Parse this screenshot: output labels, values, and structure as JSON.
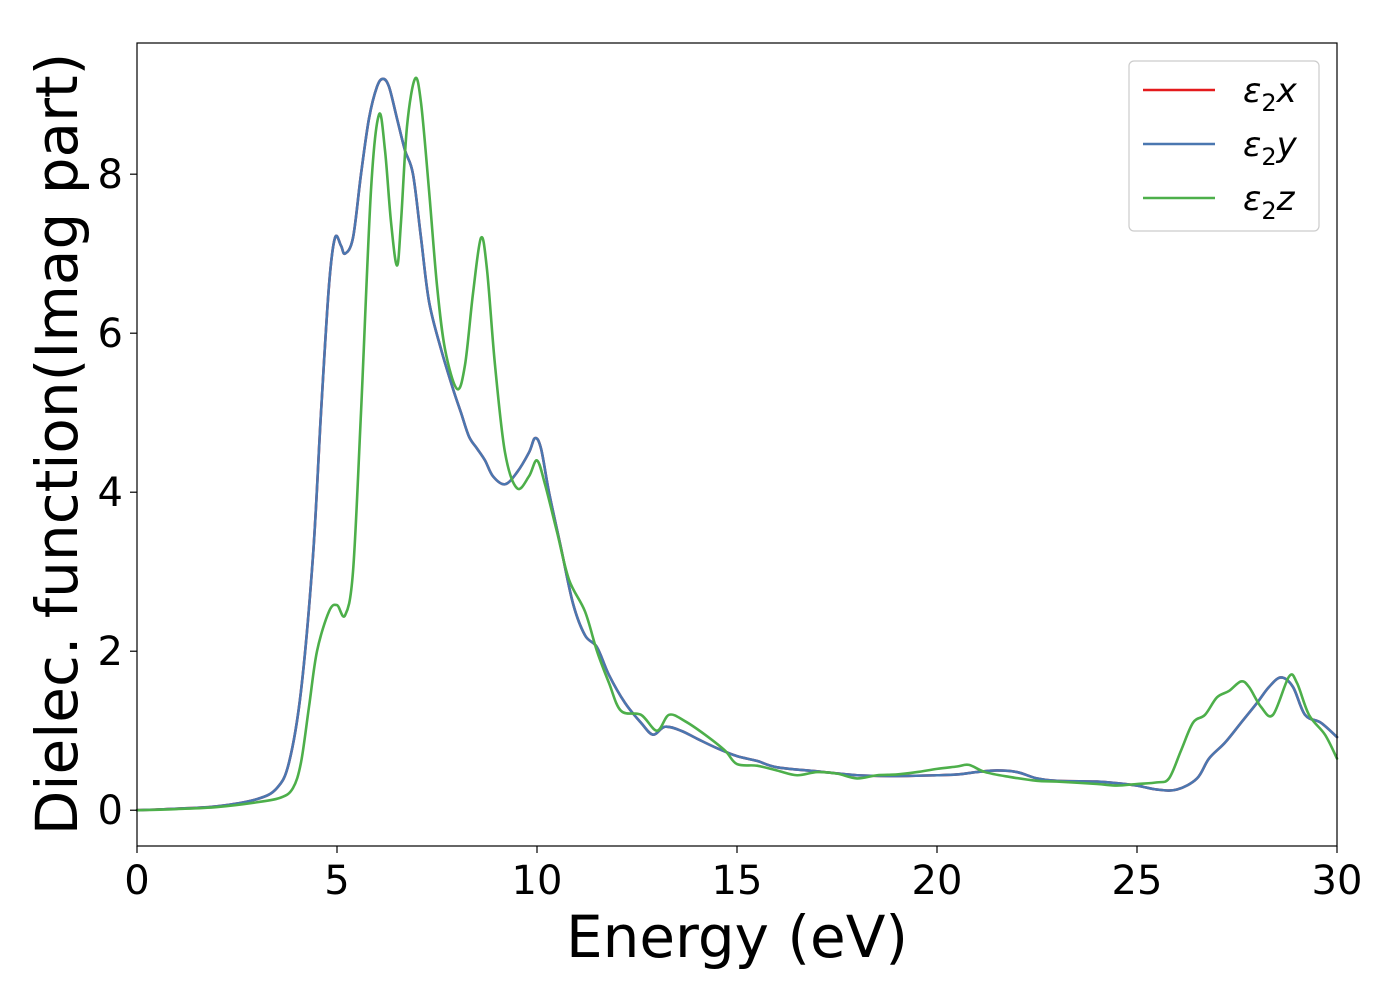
{
  "chart_data": {
    "type": "line",
    "title": "",
    "xlabel": "Energy (eV)",
    "ylabel": "Dielec. function(Imag part)",
    "xlim": [
      0,
      30
    ],
    "ylim": [
      -0.45,
      9.65
    ],
    "xticks": [
      "0",
      "5",
      "10",
      "15",
      "20",
      "25",
      "30"
    ],
    "yticks": [
      "0",
      "2",
      "4",
      "6",
      "8"
    ],
    "grid": false,
    "legend_position": "top-right",
    "series": [
      {
        "name": "ε₂x",
        "legend_main": "ε",
        "legend_sub": "2",
        "legend_var": "x",
        "color": "#e41a1c",
        "points": [
          [
            0,
            0
          ],
          [
            1,
            0.02
          ],
          [
            2,
            0.05
          ],
          [
            3,
            0.14
          ],
          [
            3.5,
            0.28
          ],
          [
            3.8,
            0.6
          ],
          [
            4.1,
            1.5
          ],
          [
            4.4,
            3.2
          ],
          [
            4.6,
            5.0
          ],
          [
            4.8,
            6.6
          ],
          [
            4.95,
            7.2
          ],
          [
            5.1,
            7.1
          ],
          [
            5.2,
            7.0
          ],
          [
            5.4,
            7.2
          ],
          [
            5.6,
            8.0
          ],
          [
            5.8,
            8.7
          ],
          [
            6.0,
            9.1
          ],
          [
            6.15,
            9.2
          ],
          [
            6.3,
            9.1
          ],
          [
            6.5,
            8.7
          ],
          [
            6.7,
            8.3
          ],
          [
            6.9,
            8.0
          ],
          [
            7.1,
            7.2
          ],
          [
            7.3,
            6.4
          ],
          [
            7.6,
            5.8
          ],
          [
            7.9,
            5.3
          ],
          [
            8.1,
            5.0
          ],
          [
            8.3,
            4.7
          ],
          [
            8.5,
            4.55
          ],
          [
            8.7,
            4.4
          ],
          [
            8.9,
            4.2
          ],
          [
            9.2,
            4.1
          ],
          [
            9.5,
            4.25
          ],
          [
            9.8,
            4.5
          ],
          [
            9.95,
            4.68
          ],
          [
            10.1,
            4.55
          ],
          [
            10.3,
            4.0
          ],
          [
            10.6,
            3.3
          ],
          [
            10.9,
            2.6
          ],
          [
            11.2,
            2.2
          ],
          [
            11.5,
            2.05
          ],
          [
            11.8,
            1.7
          ],
          [
            12.2,
            1.35
          ],
          [
            12.6,
            1.1
          ],
          [
            12.9,
            0.95
          ],
          [
            13.2,
            1.05
          ],
          [
            13.6,
            1.0
          ],
          [
            14,
            0.9
          ],
          [
            14.5,
            0.78
          ],
          [
            15,
            0.68
          ],
          [
            15.5,
            0.62
          ],
          [
            16,
            0.54
          ],
          [
            17,
            0.49
          ],
          [
            18,
            0.44
          ],
          [
            19,
            0.43
          ],
          [
            20,
            0.44
          ],
          [
            20.5,
            0.45
          ],
          [
            21,
            0.48
          ],
          [
            21.5,
            0.5
          ],
          [
            22,
            0.48
          ],
          [
            22.5,
            0.4
          ],
          [
            23,
            0.37
          ],
          [
            24,
            0.36
          ],
          [
            24.5,
            0.34
          ],
          [
            25,
            0.31
          ],
          [
            25.5,
            0.26
          ],
          [
            26,
            0.26
          ],
          [
            26.5,
            0.4
          ],
          [
            26.8,
            0.65
          ],
          [
            27.2,
            0.85
          ],
          [
            27.6,
            1.1
          ],
          [
            28,
            1.35
          ],
          [
            28.3,
            1.55
          ],
          [
            28.6,
            1.67
          ],
          [
            28.9,
            1.55
          ],
          [
            29.2,
            1.2
          ],
          [
            29.6,
            1.1
          ],
          [
            30,
            0.92
          ]
        ]
      },
      {
        "name": "ε₂y",
        "legend_main": "ε",
        "legend_sub": "2",
        "legend_var": "y",
        "color": "#4a77b0",
        "points": [
          [
            0,
            0
          ],
          [
            1,
            0.02
          ],
          [
            2,
            0.05
          ],
          [
            3,
            0.14
          ],
          [
            3.5,
            0.28
          ],
          [
            3.8,
            0.6
          ],
          [
            4.1,
            1.5
          ],
          [
            4.4,
            3.2
          ],
          [
            4.6,
            5.0
          ],
          [
            4.8,
            6.6
          ],
          [
            4.95,
            7.2
          ],
          [
            5.1,
            7.1
          ],
          [
            5.2,
            7.0
          ],
          [
            5.4,
            7.2
          ],
          [
            5.6,
            8.0
          ],
          [
            5.8,
            8.7
          ],
          [
            6.0,
            9.1
          ],
          [
            6.15,
            9.2
          ],
          [
            6.3,
            9.1
          ],
          [
            6.5,
            8.7
          ],
          [
            6.7,
            8.3
          ],
          [
            6.9,
            8.0
          ],
          [
            7.1,
            7.2
          ],
          [
            7.3,
            6.4
          ],
          [
            7.6,
            5.8
          ],
          [
            7.9,
            5.3
          ],
          [
            8.1,
            5.0
          ],
          [
            8.3,
            4.7
          ],
          [
            8.5,
            4.55
          ],
          [
            8.7,
            4.4
          ],
          [
            8.9,
            4.2
          ],
          [
            9.2,
            4.1
          ],
          [
            9.5,
            4.25
          ],
          [
            9.8,
            4.5
          ],
          [
            9.95,
            4.68
          ],
          [
            10.1,
            4.55
          ],
          [
            10.3,
            4.0
          ],
          [
            10.6,
            3.3
          ],
          [
            10.9,
            2.6
          ],
          [
            11.2,
            2.2
          ],
          [
            11.5,
            2.05
          ],
          [
            11.8,
            1.7
          ],
          [
            12.2,
            1.35
          ],
          [
            12.6,
            1.1
          ],
          [
            12.9,
            0.95
          ],
          [
            13.2,
            1.05
          ],
          [
            13.6,
            1.0
          ],
          [
            14,
            0.9
          ],
          [
            14.5,
            0.78
          ],
          [
            15,
            0.68
          ],
          [
            15.5,
            0.62
          ],
          [
            16,
            0.54
          ],
          [
            17,
            0.49
          ],
          [
            18,
            0.44
          ],
          [
            19,
            0.43
          ],
          [
            20,
            0.44
          ],
          [
            20.5,
            0.45
          ],
          [
            21,
            0.48
          ],
          [
            21.5,
            0.5
          ],
          [
            22,
            0.48
          ],
          [
            22.5,
            0.4
          ],
          [
            23,
            0.37
          ],
          [
            24,
            0.36
          ],
          [
            24.5,
            0.34
          ],
          [
            25,
            0.31
          ],
          [
            25.5,
            0.26
          ],
          [
            26,
            0.26
          ],
          [
            26.5,
            0.4
          ],
          [
            26.8,
            0.65
          ],
          [
            27.2,
            0.85
          ],
          [
            27.6,
            1.1
          ],
          [
            28,
            1.35
          ],
          [
            28.3,
            1.55
          ],
          [
            28.6,
            1.67
          ],
          [
            28.9,
            1.55
          ],
          [
            29.2,
            1.2
          ],
          [
            29.6,
            1.1
          ],
          [
            30,
            0.92
          ]
        ]
      },
      {
        "name": "ε₂z",
        "legend_main": "ε",
        "legend_sub": "2",
        "legend_var": "z",
        "color": "#4daf4a",
        "points": [
          [
            0,
            0
          ],
          [
            1,
            0.015
          ],
          [
            2,
            0.04
          ],
          [
            3,
            0.1
          ],
          [
            3.6,
            0.16
          ],
          [
            3.9,
            0.28
          ],
          [
            4.1,
            0.6
          ],
          [
            4.3,
            1.3
          ],
          [
            4.5,
            2.0
          ],
          [
            4.8,
            2.5
          ],
          [
            5.0,
            2.58
          ],
          [
            5.2,
            2.45
          ],
          [
            5.4,
            3.0
          ],
          [
            5.6,
            5.0
          ],
          [
            5.85,
            7.8
          ],
          [
            6.05,
            8.75
          ],
          [
            6.2,
            8.3
          ],
          [
            6.35,
            7.4
          ],
          [
            6.5,
            6.85
          ],
          [
            6.6,
            7.4
          ],
          [
            6.75,
            8.6
          ],
          [
            6.95,
            9.2
          ],
          [
            7.1,
            8.9
          ],
          [
            7.3,
            7.8
          ],
          [
            7.5,
            6.6
          ],
          [
            7.7,
            5.8
          ],
          [
            8.0,
            5.3
          ],
          [
            8.2,
            5.6
          ],
          [
            8.4,
            6.5
          ],
          [
            8.6,
            7.2
          ],
          [
            8.75,
            6.8
          ],
          [
            8.95,
            5.6
          ],
          [
            9.2,
            4.5
          ],
          [
            9.5,
            4.05
          ],
          [
            9.8,
            4.2
          ],
          [
            10.0,
            4.4
          ],
          [
            10.2,
            4.1
          ],
          [
            10.5,
            3.5
          ],
          [
            10.8,
            2.9
          ],
          [
            11.2,
            2.5
          ],
          [
            11.5,
            2.0
          ],
          [
            11.8,
            1.6
          ],
          [
            12.1,
            1.25
          ],
          [
            12.6,
            1.2
          ],
          [
            13.0,
            1.0
          ],
          [
            13.3,
            1.2
          ],
          [
            13.7,
            1.12
          ],
          [
            14.2,
            0.95
          ],
          [
            14.7,
            0.75
          ],
          [
            15,
            0.58
          ],
          [
            15.5,
            0.56
          ],
          [
            16,
            0.5
          ],
          [
            16.5,
            0.44
          ],
          [
            17,
            0.48
          ],
          [
            17.5,
            0.46
          ],
          [
            18,
            0.4
          ],
          [
            18.5,
            0.44
          ],
          [
            19,
            0.45
          ],
          [
            19.5,
            0.48
          ],
          [
            20,
            0.52
          ],
          [
            20.5,
            0.55
          ],
          [
            20.8,
            0.57
          ],
          [
            21.2,
            0.48
          ],
          [
            21.8,
            0.42
          ],
          [
            22.5,
            0.37
          ],
          [
            23,
            0.36
          ],
          [
            24,
            0.33
          ],
          [
            24.5,
            0.31
          ],
          [
            25,
            0.33
          ],
          [
            25.5,
            0.35
          ],
          [
            25.8,
            0.4
          ],
          [
            26.1,
            0.75
          ],
          [
            26.4,
            1.1
          ],
          [
            26.7,
            1.2
          ],
          [
            27,
            1.42
          ],
          [
            27.3,
            1.5
          ],
          [
            27.6,
            1.62
          ],
          [
            27.8,
            1.55
          ],
          [
            28.1,
            1.3
          ],
          [
            28.4,
            1.2
          ],
          [
            28.8,
            1.68
          ],
          [
            29.0,
            1.6
          ],
          [
            29.3,
            1.2
          ],
          [
            29.7,
            0.95
          ],
          [
            30,
            0.65
          ]
        ]
      }
    ]
  }
}
